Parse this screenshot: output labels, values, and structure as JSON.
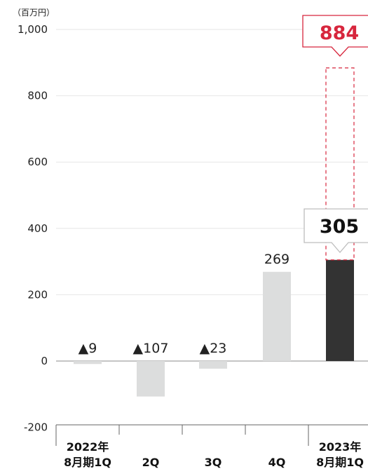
{
  "chart_data": {
    "type": "bar",
    "unit_label": "（百万円）",
    "y_ticks": [
      "1,000",
      "800",
      "600",
      "400",
      "200",
      "0",
      "-200"
    ],
    "ylim": [
      -200,
      1000
    ],
    "categories": [
      {
        "line1": "2022年",
        "line2": "8月期1Q"
      },
      {
        "line1": "",
        "line2": "2Q"
      },
      {
        "line1": "",
        "line2": "3Q"
      },
      {
        "line1": "",
        "line2": "4Q"
      },
      {
        "line1": "2023年",
        "line2": "8月期1Q"
      }
    ],
    "values": [
      -9,
      -107,
      -23,
      269,
      305
    ],
    "data_labels": [
      "▲9",
      "▲107",
      "▲23",
      "269",
      ""
    ],
    "highlight_value": 305,
    "highlight_label": "305",
    "forecast_value": 884,
    "forecast_label": "884",
    "colors": {
      "bar": "#dcdddd",
      "highlight_bar": "#333333",
      "forecast": "#d7263d",
      "axis": "#888888",
      "grid": "#e6e6e6"
    }
  }
}
